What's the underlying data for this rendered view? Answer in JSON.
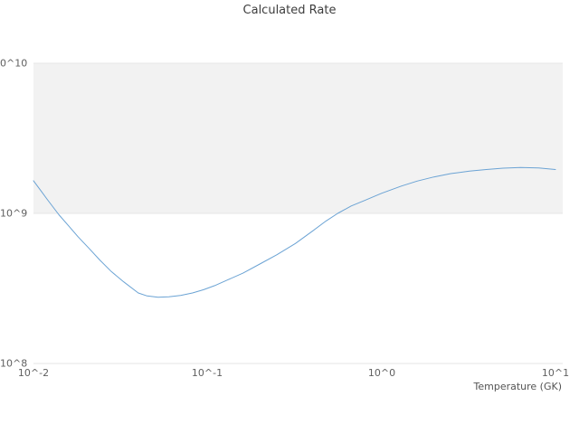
{
  "chart_data": {
    "type": "line",
    "title": "Calculated Rate",
    "xlabel": "Temperature (GK)",
    "ylabel": "",
    "x_scale": "log",
    "y_scale": "log",
    "xlim": [
      0.01,
      11
    ],
    "ylim": [
      100000000.0,
      10000000000.0
    ],
    "x_ticks": [
      {
        "value": 0.01,
        "label": "10^-2"
      },
      {
        "value": 0.1,
        "label": "10^-1"
      },
      {
        "value": 1,
        "label": "10^0"
      },
      {
        "value": 10,
        "label": "10^1"
      }
    ],
    "y_ticks": [
      {
        "value": 100000000.0,
        "label": "10^8"
      },
      {
        "value": 1000000000.0,
        "label": "10^9"
      },
      {
        "value": 10000000000.0,
        "label": "10^10"
      }
    ],
    "band": {
      "y_from": 1000000000.0,
      "y_to": 10000000000.0,
      "color": "#f2f2f2"
    },
    "grid_color": "#e6e6e6",
    "line_color": "#6ba3d4",
    "legend": "none",
    "series": [
      {
        "name": "calculated-rate",
        "x": [
          0.01,
          0.011,
          0.012,
          0.014,
          0.016,
          0.018,
          0.021,
          0.024,
          0.028,
          0.033,
          0.04,
          0.045,
          0.052,
          0.06,
          0.07,
          0.082,
          0.095,
          0.11,
          0.13,
          0.16,
          0.2,
          0.25,
          0.32,
          0.4,
          0.48,
          0.56,
          0.67,
          0.8,
          1.0,
          1.3,
          1.6,
          2.0,
          2.5,
          3.2,
          4.0,
          5.0,
          6.3,
          8.0,
          10.0
        ],
        "y": [
          1650000000.0,
          1420000000.0,
          1240000000.0,
          980000000.0,
          820000000.0,
          700000000.0,
          580000000.0,
          490000000.0,
          410000000.0,
          350000000.0,
          295000000.0,
          282000000.0,
          276000000.0,
          278000000.0,
          284000000.0,
          295000000.0,
          310000000.0,
          330000000.0,
          360000000.0,
          400000000.0,
          460000000.0,
          530000000.0,
          630000000.0,
          760000000.0,
          890000000.0,
          1000000000.0,
          1120000000.0,
          1220000000.0,
          1360000000.0,
          1520000000.0,
          1640000000.0,
          1750000000.0,
          1840000000.0,
          1910000000.0,
          1960000000.0,
          2000000000.0,
          2020000000.0,
          2010000000.0,
          1960000000.0
        ]
      }
    ]
  }
}
